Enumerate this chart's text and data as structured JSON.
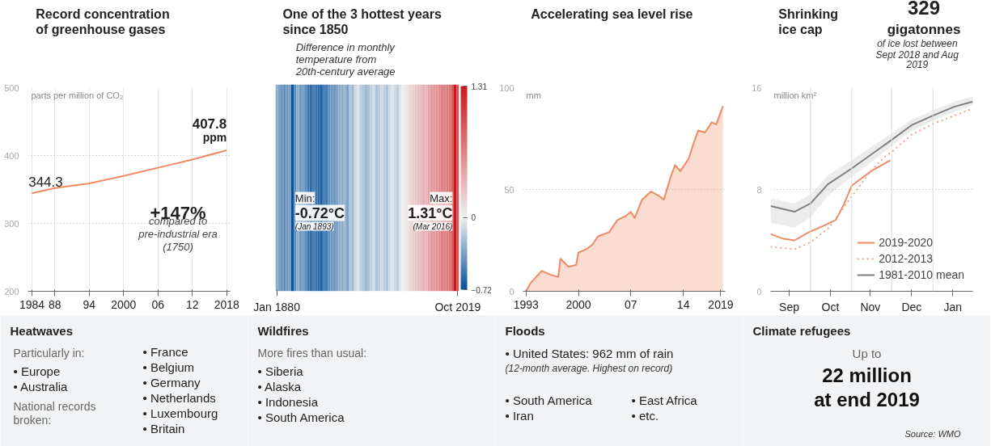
{
  "chart_data": [
    {
      "type": "line",
      "title": "Record concentration of greenhouse gases",
      "ylabel": "parts per million of CO₂",
      "x": [
        1984,
        1988,
        1994,
        2000,
        2006,
        2012,
        2018
      ],
      "series": [
        {
          "color": "#ef8a62",
          "values": [
            344.3,
            352,
            359,
            370,
            382,
            394,
            407.8
          ],
          "value_labels": [
            "344.3",
            null,
            null,
            null,
            null,
            null,
            "407.8 ppm"
          ]
        }
      ],
      "xlim": [
        1983.3,
        2018.6
      ],
      "xticks": [
        1984,
        {
          "value": 1988,
          "label": "88"
        },
        {
          "value": 1994,
          "label": "94"
        },
        2000,
        {
          "value": 2006,
          "label": "06"
        },
        {
          "value": 2012,
          "label": "12"
        },
        2018
      ],
      "ylim": [
        200,
        500
      ],
      "yticks": [
        200,
        300,
        400,
        500
      ],
      "grid": true,
      "annotations": [
        "+147%",
        "compared to pre-industrial era (1750)"
      ]
    },
    {
      "type": "heatmap",
      "title": "One of the 3 hottest years since 1850",
      "categories": [
        "Jan 1880",
        null,
        null,
        null,
        null,
        null,
        null,
        null,
        null,
        null,
        null,
        null,
        null,
        null,
        null,
        null,
        null,
        null,
        null,
        null,
        null,
        null,
        null,
        null,
        null,
        null,
        null,
        null,
        null,
        null,
        null,
        null,
        null,
        null,
        null,
        null,
        null,
        null,
        null,
        null,
        null,
        null,
        null,
        null,
        null,
        null,
        null,
        null,
        null,
        null,
        null,
        null,
        null,
        null,
        null,
        null,
        null,
        null,
        null,
        null,
        null,
        null,
        null,
        null,
        null,
        null,
        null,
        null,
        null,
        "Oct 2019"
      ],
      "y_categories": [
        null
      ],
      "clim": [
        -0.72,
        1.31
      ],
      "cticks": [
        -0.72,
        0,
        1.31
      ],
      "cells": [
        [
          -0.3,
          -0.35,
          -0.4,
          -0.45,
          -0.4,
          -0.35,
          -0.72,
          -0.45,
          -0.3,
          -0.4,
          -0.35,
          -0.45,
          -0.55,
          -0.6,
          -0.5,
          -0.55,
          -0.6,
          -0.65,
          -0.5,
          -0.55,
          -0.45,
          -0.4,
          -0.4,
          -0.35,
          -0.3,
          -0.3,
          -0.25,
          -0.35,
          -0.2,
          -0.25,
          -0.1,
          -0.05,
          -0.15,
          -0.2,
          -0.25,
          -0.2,
          -0.15,
          -0.1,
          -0.2,
          -0.15,
          -0.1,
          -0.15,
          -0.2,
          -0.1,
          -0.05,
          -0.1,
          -0.15,
          -0.05,
          0.0,
          0.05,
          0.1,
          0.15,
          0.2,
          0.25,
          0.3,
          0.3,
          0.4,
          0.35,
          0.45,
          0.5,
          0.5,
          0.55,
          0.6,
          0.65,
          0.65,
          0.7,
          0.75,
          0.9,
          1.31,
          0.95
        ]
      ],
      "annotations": [
        "Difference in monthly temperature from 20th-century average",
        "Min: -0.72°C (Jan 1893)",
        "Max: 1.31°C (Mar 2016)"
      ]
    },
    {
      "type": "area",
      "title": "Accelerating sea level rise",
      "ylabel": "mm",
      "x": [
        1993,
        1993.6,
        1995.1,
        1996.4,
        1997.3,
        1997.6,
        1998.7,
        1999.7,
        2000,
        2001.2,
        2001.9,
        2002.6,
        2004.1,
        2005.2,
        2006.3,
        2007,
        2007.5,
        2008.5,
        2009.7,
        2010.7,
        2011.4,
        2012.3,
        2012.9,
        2013.6,
        2014.7,
        2015.4,
        2016,
        2016.9,
        2017.8,
        2018.4,
        2019.3
      ],
      "series": [
        {
          "color": "#ef8a62",
          "values": [
            0,
            4,
            10,
            8,
            7,
            16,
            12,
            13,
            19,
            21,
            23,
            27,
            29,
            35,
            37,
            39,
            36,
            45,
            49,
            47,
            45,
            56,
            62,
            59,
            65,
            73,
            79,
            78,
            83,
            82,
            91
          ]
        }
      ],
      "xlim": [
        1992.6,
        2019.6
      ],
      "xticks": [
        1993,
        2000,
        {
          "value": 2007,
          "label": "07"
        },
        {
          "value": 2014,
          "label": "14"
        },
        2019
      ],
      "ylim": [
        0,
        100
      ],
      "yticks": [
        0,
        50,
        100
      ],
      "grid": "y"
    },
    {
      "type": "line",
      "title": "Shrinking ice cap",
      "ylabel": "million km²",
      "series": [
        {
          "name": "2019-2020",
          "color": "#ef8a62",
          "x": [
            "2019-09-01",
            "2019-09-10",
            "2019-09-19",
            "2019-10-01",
            "2019-10-10",
            "2019-10-20",
            "2019-10-26",
            "2019-11-01",
            "2019-11-15",
            "2019-11-30"
          ],
          "values": [
            4.5,
            4.15,
            4.0,
            4.7,
            5.1,
            5.6,
            6.8,
            8.3,
            9.4,
            10.3
          ]
        },
        {
          "name": "2012-2013",
          "color": "#e8a58c",
          "line_style": "dotted",
          "x": [
            "2019-09-01",
            "2019-09-19",
            "2019-10-01",
            "2019-10-15",
            "2019-11-01",
            "2019-11-15",
            "2019-11-25",
            "2019-12-01",
            "2019-12-16",
            "2020-01-01",
            "2020-01-17",
            "2020-01-31"
          ],
          "values": [
            3.5,
            3.3,
            3.85,
            5.0,
            7.45,
            9.4,
            10.5,
            10.95,
            12.3,
            13.15,
            13.8,
            14.35
          ]
        },
        {
          "name": "1981-2010 mean",
          "color": "#808080",
          "x": [
            "2019-09-01",
            "2019-09-19",
            "2019-10-01",
            "2019-10-14",
            "2019-11-01",
            "2019-11-15",
            "2019-12-01",
            "2019-12-16",
            "2020-01-01",
            "2020-01-17",
            "2020-01-31"
          ],
          "values": [
            6.7,
            6.25,
            6.9,
            8.4,
            9.65,
            10.7,
            11.9,
            13.05,
            13.8,
            14.5,
            14.9
          ],
          "lower": [
            5.4,
            5.0,
            5.8,
            7.5,
            9.0,
            10.1,
            11.4,
            12.6,
            13.4,
            14.1,
            14.6
          ],
          "upper": [
            7.3,
            6.9,
            7.6,
            9.1,
            10.3,
            11.3,
            12.4,
            13.5,
            14.2,
            14.9,
            15.3
          ]
        }
      ],
      "xlim": [
        "2019-09-01",
        "2020-01-31"
      ],
      "xticks": [
        {
          "value": "2019-09-15",
          "label": "Sep"
        },
        {
          "value": "2019-10-16",
          "label": "Oct"
        },
        {
          "value": "2019-11-15",
          "label": "Nov"
        },
        {
          "value": "2019-12-16",
          "label": "Dec"
        },
        {
          "value": "2020-01-16",
          "label": "Jan"
        }
      ],
      "ylim": [
        0,
        16
      ],
      "yticks": [
        0,
        8,
        16
      ],
      "grid": "y",
      "legend": "bottom right",
      "ref_lines": [
        {
          "axis": "x",
          "value": "2019-10-01",
          "color": "#dddddd"
        },
        {
          "axis": "x",
          "value": "2019-11-01",
          "color": "#dddddd"
        },
        {
          "axis": "x",
          "value": "2019-12-01",
          "color": "#dddddd"
        },
        {
          "axis": "x",
          "value": "2020-01-01",
          "color": "#dddddd"
        }
      ],
      "annotations": [
        "329",
        "gigatonnes",
        "of ice lost between Sept 2018 and Aug 2019"
      ]
    },
    {
      "type": "other",
      "title": "Heatwaves",
      "annotations": [
        "Particularly in:",
        "• Europe",
        "• Australia",
        "National records broken:",
        "• France",
        "• Belgium",
        "• Germany",
        "• Netherlands",
        "• Luxembourg",
        "• Britain"
      ]
    },
    {
      "type": "other",
      "title": "Wildfires",
      "annotations": [
        "More fires than usual:",
        "• Siberia",
        "• Alaska",
        "• Indonesia",
        "• South America"
      ]
    },
    {
      "type": "other",
      "title": "Floods",
      "annotations": [
        "• United States: 962 mm of rain",
        "(12-month average. Highest on record)",
        "• South America",
        "• Iran",
        "• East Africa",
        "• etc."
      ]
    },
    {
      "type": "other",
      "title": "Climate refugees",
      "annotations": [
        "Up to",
        "22 million",
        "at end 2019",
        "Source: WMO"
      ]
    }
  ]
}
